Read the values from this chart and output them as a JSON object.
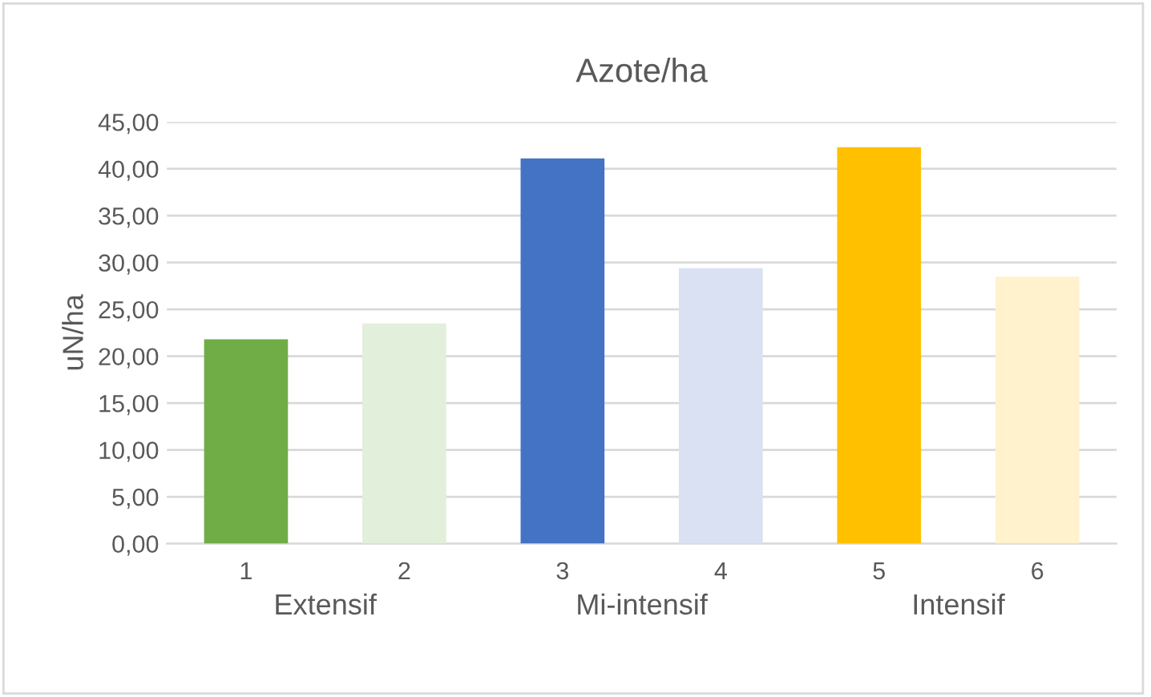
{
  "chart_data": {
    "type": "bar",
    "title": "Azote/ha",
    "ylabel": "uN/ha",
    "categories": [
      "1",
      "2",
      "3",
      "4",
      "5",
      "6"
    ],
    "values": [
      21.8,
      23.5,
      41.1,
      29.4,
      42.3,
      28.5
    ],
    "colors": [
      "#70ad47",
      "#e2efda",
      "#4472c4",
      "#d9e1f2",
      "#ffc000",
      "#fff2cc"
    ],
    "annotations": [
      "Extensif",
      "Mi-intensif",
      "Intensif"
    ],
    "ylim": [
      0,
      45
    ],
    "yticks": [
      {
        "value": 0,
        "label": "0,00"
      },
      {
        "value": 5,
        "label": "5,00"
      },
      {
        "value": 10,
        "label": "10,00"
      },
      {
        "value": 15,
        "label": "15,00"
      },
      {
        "value": 20,
        "label": "20,00"
      },
      {
        "value": 25,
        "label": "25,00"
      },
      {
        "value": 30,
        "label": "30,00"
      },
      {
        "value": 35,
        "label": "35,00"
      },
      {
        "value": 40,
        "label": "40,00"
      },
      {
        "value": 45,
        "label": "45,00"
      }
    ],
    "grid": "y",
    "legend": false
  }
}
